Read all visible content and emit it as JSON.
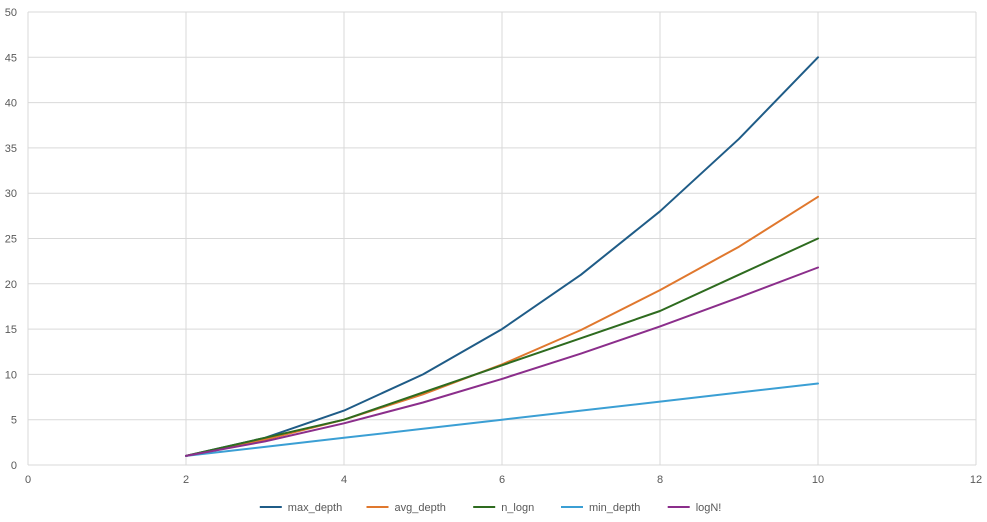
{
  "chart_data": {
    "type": "line",
    "title": "",
    "xlabel": "",
    "ylabel": "",
    "xlim": [
      0,
      12
    ],
    "ylim": [
      0,
      50
    ],
    "x_ticks": [
      0,
      2,
      4,
      6,
      8,
      10,
      12
    ],
    "y_ticks": [
      0,
      5,
      10,
      15,
      20,
      25,
      30,
      35,
      40,
      45,
      50
    ],
    "grid": true,
    "legend_position": "bottom",
    "x": [
      2,
      3,
      4,
      5,
      6,
      7,
      8,
      9,
      10
    ],
    "series": [
      {
        "name": "max_depth",
        "color": "#1f5c87",
        "values": [
          1,
          3,
          6,
          10,
          15,
          21,
          28,
          36,
          45
        ]
      },
      {
        "name": "avg_depth",
        "color": "#e0782e",
        "values": [
          1,
          2.8,
          5,
          7.8,
          11.1,
          14.9,
          19.3,
          24.1,
          29.6
        ]
      },
      {
        "name": "n_logn",
        "color": "#2e6b1f",
        "values": [
          1,
          3,
          5,
          8,
          11,
          14,
          17,
          21,
          25
        ]
      },
      {
        "name": "min_depth",
        "color": "#3b9fd4",
        "values": [
          1,
          2,
          3,
          4,
          5,
          6,
          7,
          8,
          9
        ]
      },
      {
        "name": "logN!",
        "color": "#8b2e8b",
        "values": [
          1,
          2.6,
          4.6,
          6.9,
          9.5,
          12.3,
          15.3,
          18.5,
          21.8
        ]
      }
    ]
  }
}
